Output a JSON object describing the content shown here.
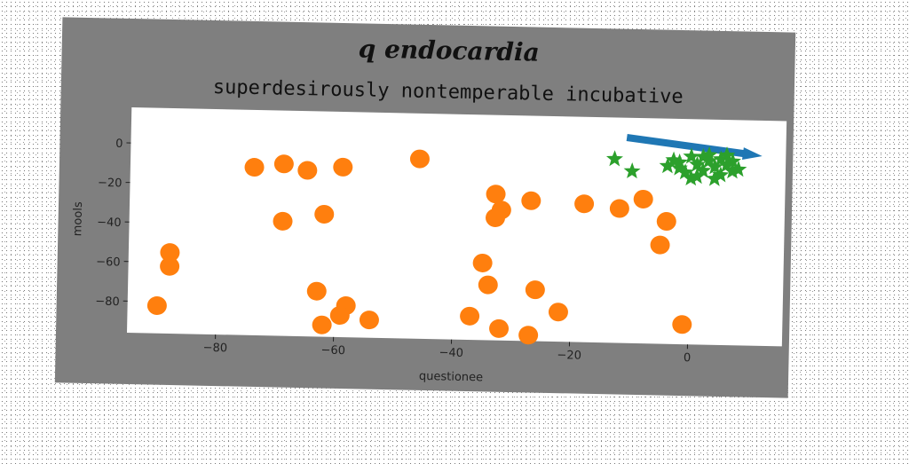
{
  "chart_data": {
    "type": "scatter",
    "title": "q endocardia",
    "subtitle": "superdesirously nontemperable incubative",
    "xlabel": "questionee",
    "ylabel": "mools",
    "xlim": [
      -95,
      16
    ],
    "ylim": [
      -96,
      18
    ],
    "xticks": [
      -80,
      -60,
      -40,
      -20,
      0
    ],
    "yticks": [
      0,
      -20,
      -40,
      -60,
      -80
    ],
    "grid": false,
    "colors": {
      "figure_bg": "#7f7f7f",
      "plot_bg": "#ffffff",
      "orange": "#ff7f0e",
      "green": "#2ca02c",
      "blue": "#1f77b4"
    },
    "arrow": {
      "x_start": -11,
      "y_start": 8,
      "x_end": 12,
      "y_end": 0
    },
    "series": [
      {
        "marker": "circle",
        "color": "#ff7f0e",
        "points": [
          [
            -74,
            -11
          ],
          [
            -69,
            -9
          ],
          [
            -65,
            -12
          ],
          [
            -59,
            -10
          ],
          [
            -46,
            -5
          ],
          [
            -69,
            -38
          ],
          [
            -62,
            -34
          ],
          [
            -33,
            -22
          ],
          [
            -27,
            -25
          ],
          [
            -18,
            -26
          ],
          [
            -12,
            -28
          ],
          [
            -8,
            -23
          ],
          [
            -32,
            -30
          ],
          [
            -33,
            -34
          ],
          [
            -4,
            -34
          ],
          [
            -5,
            -46
          ],
          [
            -88,
            -55
          ],
          [
            -88,
            -62
          ],
          [
            -35,
            -57
          ],
          [
            -34,
            -68
          ],
          [
            -26,
            -70
          ],
          [
            -63,
            -73
          ],
          [
            -90,
            -82
          ],
          [
            -58,
            -80
          ],
          [
            -59,
            -85
          ],
          [
            -54,
            -87
          ],
          [
            -37,
            -84
          ],
          [
            -22,
            -81
          ],
          [
            -32,
            -90
          ],
          [
            -27,
            -93
          ],
          [
            -62,
            -90
          ],
          [
            -1,
            -86
          ]
        ]
      },
      {
        "marker": "star",
        "color": "#2ca02c",
        "points": [
          [
            -13,
            -3
          ],
          [
            -10,
            -9
          ],
          [
            -3,
            -3
          ],
          [
            -2,
            -7
          ],
          [
            0,
            -12
          ],
          [
            1,
            -5
          ],
          [
            0,
            -1
          ],
          [
            2,
            -8
          ],
          [
            3,
            -3
          ],
          [
            4,
            -6
          ],
          [
            5,
            -10
          ],
          [
            5,
            -2
          ],
          [
            6,
            -5
          ],
          [
            7,
            -8
          ],
          [
            -1,
            -9
          ],
          [
            3,
            0
          ],
          [
            7,
            -3
          ],
          [
            6,
            0
          ],
          [
            -4,
            -6
          ],
          [
            1,
            -11
          ],
          [
            4,
            -12
          ],
          [
            8,
            -7
          ],
          [
            2,
            -1
          ],
          [
            -2,
            -4
          ]
        ]
      }
    ]
  }
}
